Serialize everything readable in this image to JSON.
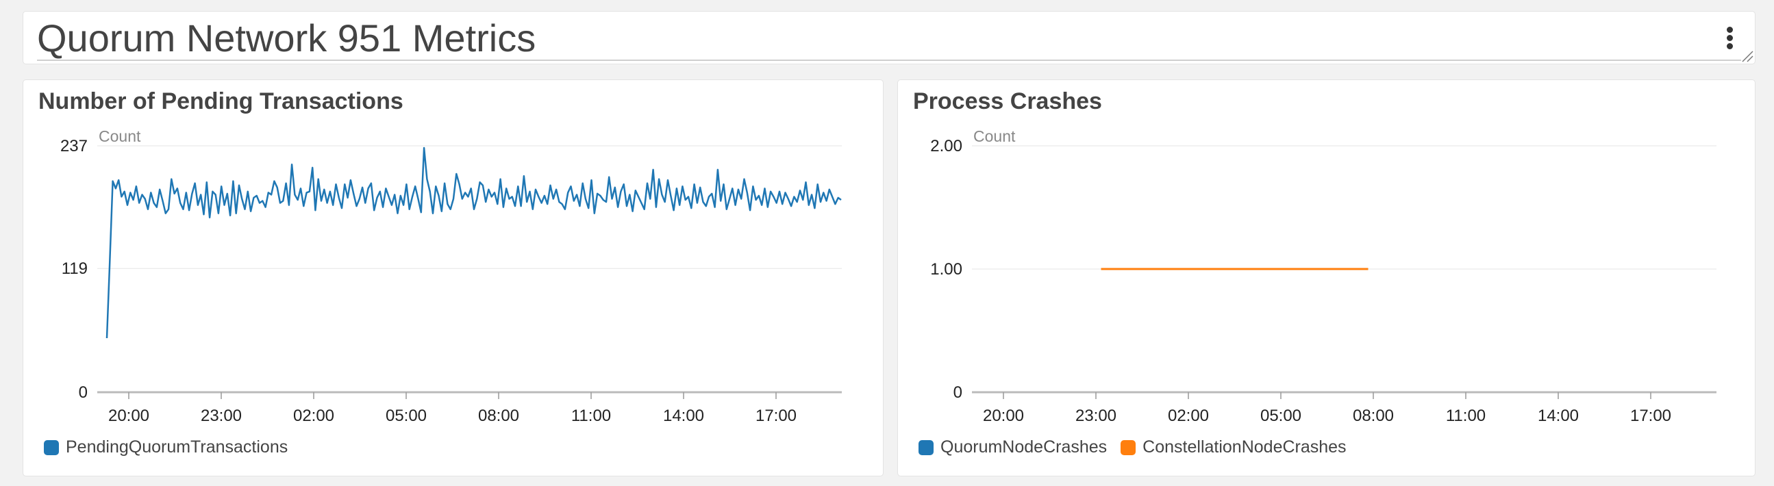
{
  "dashboard": {
    "title": "Quorum Network 951 Metrics"
  },
  "panels": {
    "pending": {
      "title": "Number of Pending Transactions",
      "unit_label": "Count",
      "legend": [
        {
          "name": "PendingQuorumTransactions",
          "color": "#1f77b4"
        }
      ]
    },
    "crashes": {
      "title": "Process Crashes",
      "unit_label": "Count",
      "legend": [
        {
          "name": "QuorumNodeCrashes",
          "color": "#1f77b4"
        },
        {
          "name": "ConstellationNodeCrashes",
          "color": "#ff7f0e"
        }
      ]
    }
  },
  "chart_data": [
    {
      "type": "line",
      "title": "Number of Pending Transactions",
      "ylabel": "Count",
      "ylim": [
        0,
        237
      ],
      "yticks": [
        "237",
        "119",
        "0"
      ],
      "ytick_values": [
        237,
        119,
        0
      ],
      "xticks": [
        "20:00",
        "23:00",
        "02:00",
        "05:00",
        "08:00",
        "11:00",
        "14:00",
        "17:00"
      ],
      "xlim_hours": [
        19.2,
        19.9
      ],
      "legend": "bottom-left",
      "grid": true,
      "series": [
        {
          "name": "PendingQuorumTransactions",
          "color": "#1f77b4",
          "values": [
            52,
            126,
            203,
            196,
            204,
            188,
            193,
            180,
            192,
            185,
            198,
            182,
            190,
            186,
            176,
            192,
            182,
            178,
            195,
            184,
            172,
            176,
            205,
            191,
            196,
            182,
            176,
            192,
            175,
            191,
            201,
            180,
            190,
            171,
            202,
            168,
            193,
            190,
            172,
            198,
            180,
            191,
            170,
            203,
            172,
            199,
            186,
            176,
            193,
            174,
            187,
            189,
            182,
            184,
            178,
            192,
            190,
            203,
            197,
            182,
            184,
            201,
            180,
            219,
            190,
            185,
            196,
            179,
            192,
            193,
            216,
            175,
            205,
            184,
            195,
            182,
            193,
            180,
            200,
            187,
            177,
            200,
            187,
            204,
            191,
            179,
            186,
            197,
            182,
            196,
            201,
            175,
            187,
            193,
            178,
            196,
            188,
            180,
            190,
            172,
            189,
            180,
            200,
            176,
            188,
            198,
            186,
            173,
            235,
            205,
            193,
            172,
            198,
            189,
            174,
            201,
            181,
            176,
            186,
            210,
            200,
            186,
            192,
            188,
            196,
            176,
            186,
            202,
            199,
            183,
            195,
            188,
            192,
            181,
            205,
            178,
            196,
            186,
            188,
            179,
            198,
            179,
            208,
            183,
            193,
            176,
            195,
            188,
            182,
            189,
            181,
            199,
            186,
            195,
            183,
            181,
            176,
            192,
            198,
            184,
            190,
            179,
            201,
            186,
            177,
            204,
            172,
            191,
            189,
            185,
            183,
            207,
            186,
            197,
            178,
            193,
            200,
            179,
            190,
            174,
            194,
            188,
            182,
            176,
            201,
            186,
            214,
            178,
            205,
            190,
            183,
            204,
            189,
            175,
            196,
            180,
            198,
            185,
            188,
            177,
            200,
            182,
            197,
            183,
            179,
            188,
            191,
            178,
            214,
            184,
            200,
            176,
            186,
            196,
            180,
            195,
            186,
            205,
            192,
            175,
            198,
            185,
            189,
            180,
            196,
            178,
            193,
            188,
            182,
            193,
            181,
            192,
            186,
            179,
            188,
            183,
            194,
            185,
            202,
            180,
            190,
            177,
            200,
            183,
            192,
            184,
            195,
            188,
            181,
            187,
            185
          ]
        }
      ]
    },
    {
      "type": "line",
      "title": "Process Crashes",
      "ylabel": "Count",
      "ylim": [
        0,
        2
      ],
      "yticks": [
        "2.00",
        "1.00",
        "0"
      ],
      "ytick_values": [
        2,
        1,
        0
      ],
      "xticks": [
        "20:00",
        "23:00",
        "02:00",
        "05:00",
        "08:00",
        "11:00",
        "14:00",
        "17:00"
      ],
      "legend": "bottom-left",
      "grid": true,
      "series": [
        {
          "name": "QuorumNodeCrashes",
          "color": "#1f77b4",
          "x": [],
          "values": []
        },
        {
          "name": "ConstellationNodeCrashes",
          "color": "#ff7f0e",
          "x": [
            "23:10",
            "07:50"
          ],
          "values": [
            1,
            1
          ]
        }
      ]
    }
  ]
}
